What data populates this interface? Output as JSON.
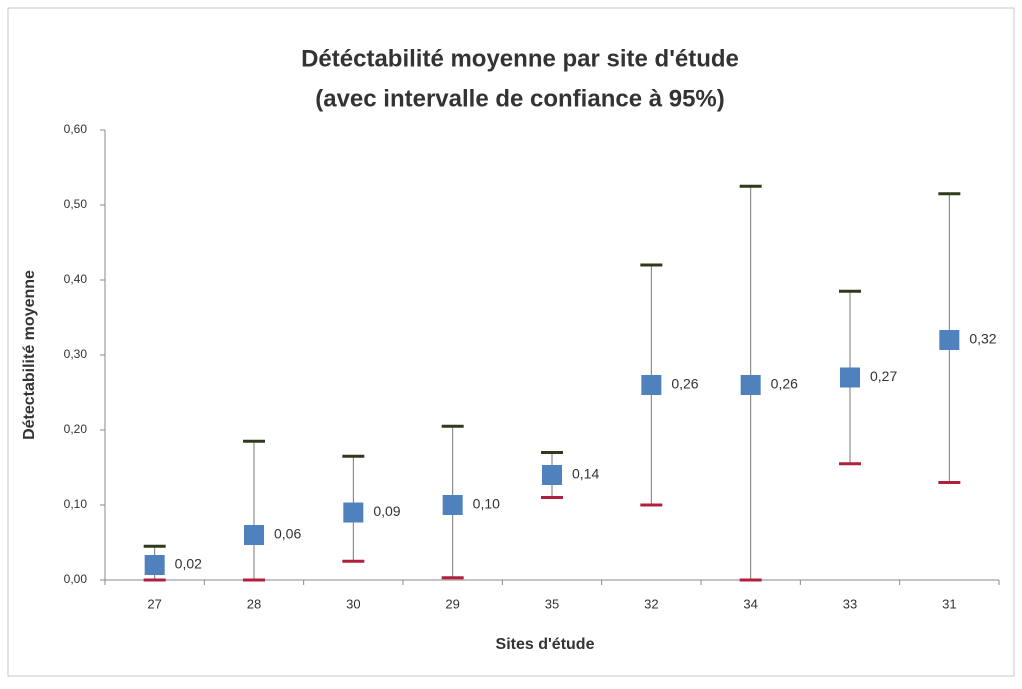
{
  "chart_data": {
    "type": "errorbar",
    "title": "Détéctabilité moyenne par site d'étude",
    "subtitle": "(avec intervalle de confiance à 95%)",
    "x_label": "Sites d'étude",
    "y_label": "Détectabilité moyenne",
    "categories": [
      "27",
      "28",
      "30",
      "29",
      "35",
      "32",
      "34",
      "33",
      "31"
    ],
    "values": [
      0.02,
      0.06,
      0.09,
      0.1,
      0.14,
      0.26,
      0.26,
      0.27,
      0.32
    ],
    "value_labels": [
      "0,02",
      "0,06",
      "0,09",
      "0,10",
      "0,14",
      "0,26",
      "0,26",
      "0,27",
      "0,32"
    ],
    "upper": [
      0.045,
      0.185,
      0.165,
      0.205,
      0.17,
      0.42,
      0.525,
      0.385,
      0.515
    ],
    "lower": [
      0.0,
      0.0,
      0.025,
      0.003,
      0.11,
      0.1,
      0.0,
      0.155,
      0.13
    ],
    "color": "#4f81bd",
    "upper_color": "#2f3a1a",
    "lower_color": "#b0203c",
    "ylim": [
      0,
      0.6
    ],
    "yticks": [
      {
        "value": 0,
        "label": "0,00"
      },
      {
        "value": 0.1,
        "label": "0,10"
      },
      {
        "value": 0.2,
        "label": "0,20"
      },
      {
        "value": 0.3,
        "label": "0,30"
      },
      {
        "value": 0.4,
        "label": "0,40"
      },
      {
        "value": 0.5,
        "label": "0,50"
      },
      {
        "value": 0.6,
        "label": "0,60"
      }
    ]
  }
}
